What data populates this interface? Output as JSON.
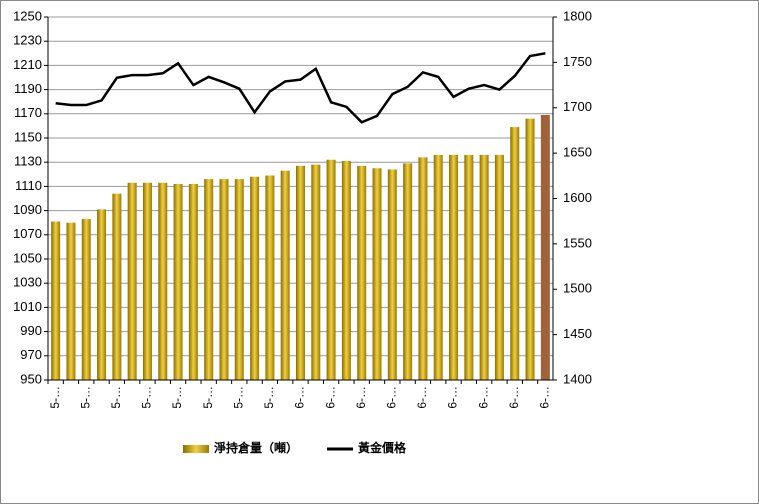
{
  "chart_data": {
    "type": "bar_line",
    "categories": [
      "5-…",
      null,
      "5-…",
      null,
      "5-…",
      null,
      "5-…",
      null,
      "5-…",
      null,
      "5-…",
      null,
      "5-…",
      null,
      "5-…",
      null,
      "6-…",
      null,
      "6-…",
      null,
      "6-…",
      null,
      "6-…",
      null,
      "6-…",
      null,
      "6-…",
      null,
      "6-…",
      null,
      "6-…",
      null,
      "6-…"
    ],
    "series": [
      {
        "name": "淨持倉量（噸）",
        "type": "bar",
        "color": "#c9a400",
        "highlight_index": 32,
        "highlight_color": "#a0623a",
        "values": [
          1081,
          1080,
          1083,
          1091,
          1104,
          1113,
          1113,
          1113,
          1112,
          1112,
          1116,
          1116,
          1116,
          1118,
          1119,
          1123,
          1127,
          1128,
          1132,
          1131,
          1127,
          1125,
          1124,
          1129,
          1134,
          1136,
          1136,
          1136,
          1136,
          1136,
          1159,
          1166,
          1169
        ]
      },
      {
        "name": "黃金價格",
        "type": "line",
        "axis": "y2",
        "color": "#000000",
        "values": [
          1705,
          1703,
          1703,
          1708,
          1733,
          1736,
          1736,
          1738,
          1749,
          1725,
          1734,
          1728,
          1721,
          1695,
          1718,
          1729,
          1731,
          1743,
          1706,
          1701,
          1684,
          1691,
          1715,
          1723,
          1739,
          1734,
          1712,
          1721,
          1725,
          1720,
          1735,
          1757,
          1760
        ]
      }
    ],
    "ylim": [
      950,
      1250
    ],
    "yticks": [
      950,
      970,
      990,
      1010,
      1030,
      1050,
      1070,
      1090,
      1110,
      1130,
      1150,
      1170,
      1190,
      1210,
      1230,
      1250
    ],
    "y2lim": [
      1400,
      1800
    ],
    "y2ticks": [
      1400,
      1450,
      1500,
      1550,
      1600,
      1650,
      1700,
      1750,
      1800
    ],
    "grid": true,
    "legend": "bottom"
  }
}
